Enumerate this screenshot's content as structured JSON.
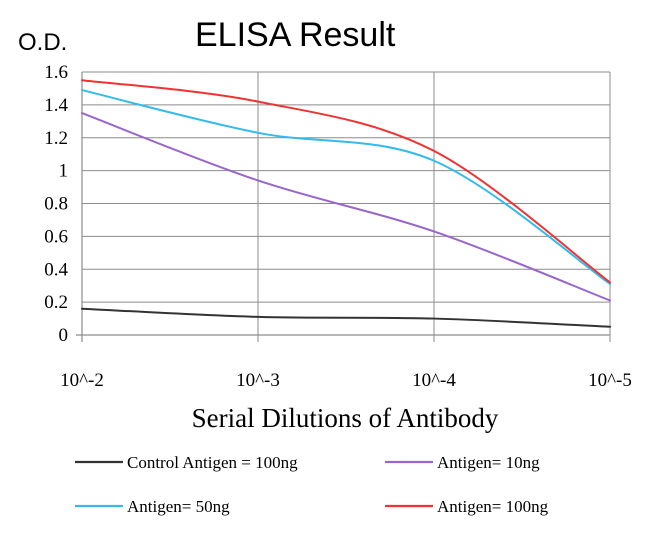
{
  "chart_data": {
    "type": "line",
    "title": "ELISA Result",
    "ylabel": "O.D.",
    "xlabel": "Serial Dilutions of Antibody",
    "categories": [
      "10^-2",
      "10^-3",
      "10^-4",
      "10^-5"
    ],
    "ylim": [
      0,
      1.6
    ],
    "yticks": [
      "0",
      "0.2",
      "0.4",
      "0.6",
      "0.8",
      "1",
      "1.2",
      "1.4",
      "1.6"
    ],
    "grid": true,
    "legend_position": "bottom",
    "series": [
      {
        "name": "Control Antigen = 100ng",
        "color": "#333333",
        "x": [
          0,
          1,
          2,
          3
        ],
        "values": [
          0.16,
          0.11,
          0.1,
          0.05
        ]
      },
      {
        "name": "Antigen= 10ng",
        "color": "#9966cc",
        "x": [
          0,
          1,
          2,
          3
        ],
        "values": [
          1.35,
          0.94,
          0.63,
          0.21
        ]
      },
      {
        "name": "Antigen= 50ng",
        "color": "#33bbee",
        "x": [
          0,
          1,
          2,
          3
        ],
        "values": [
          1.49,
          1.23,
          1.06,
          0.31
        ]
      },
      {
        "name": "Antigen= 100ng",
        "color": "#ee3333",
        "x": [
          0,
          1,
          2,
          3
        ],
        "values": [
          1.55,
          1.42,
          1.12,
          0.32
        ]
      }
    ]
  }
}
